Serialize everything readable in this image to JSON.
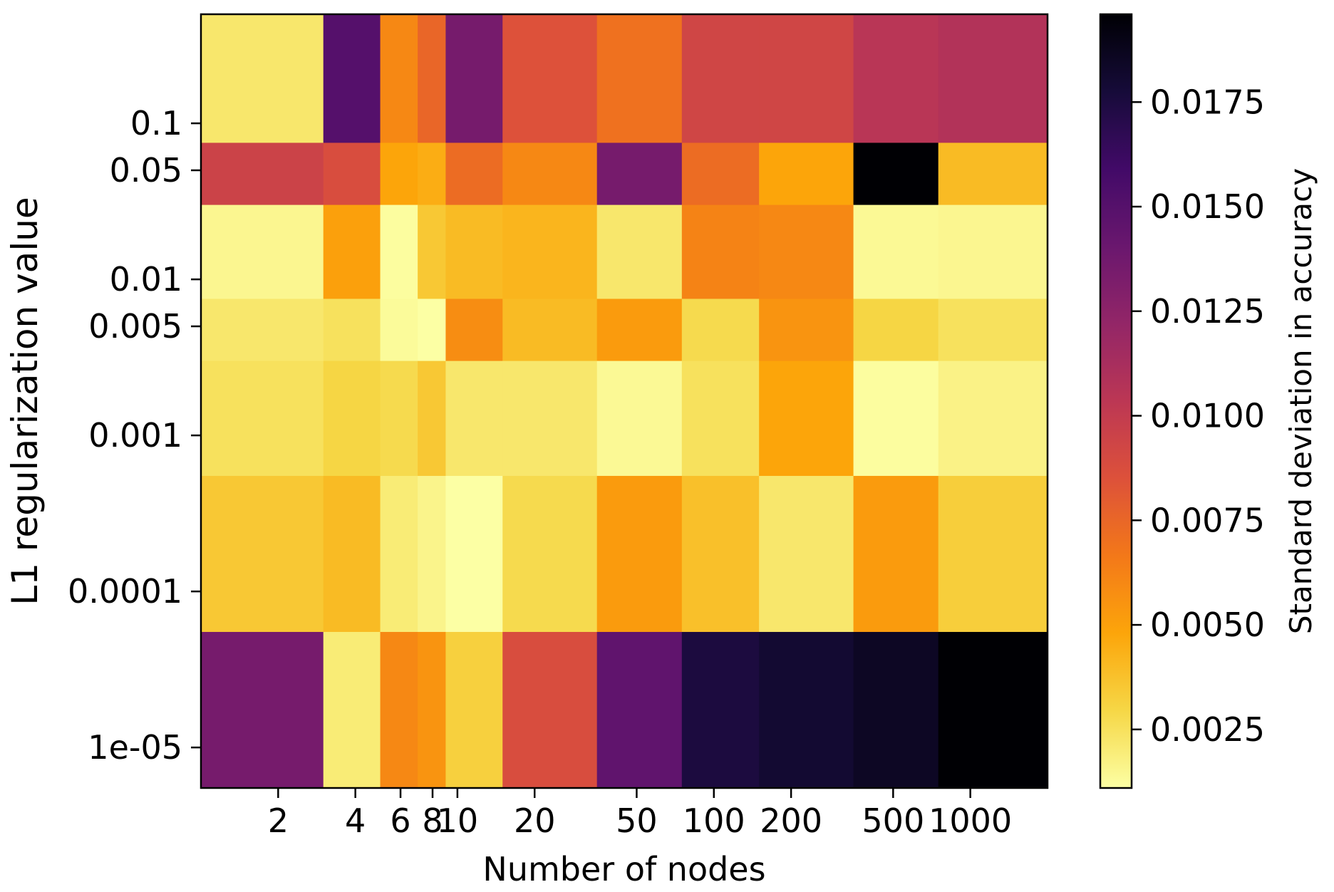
{
  "chart_data": {
    "type": "heatmap",
    "title": "",
    "xlabel": "Number of nodes",
    "ylabel": "L1 regularization value",
    "colorbar_label": "Standard deviation in accuracy",
    "colormap": "inferno_r",
    "x_tick_labels": [
      "2",
      "4",
      "6",
      "8",
      "10",
      "20",
      "50",
      "100",
      "200",
      "500",
      "1000"
    ],
    "y_tick_labels": [
      "0.1",
      "0.05",
      "0.01",
      "0.005",
      "0.001",
      "0.0001",
      "1e-05"
    ],
    "x_edges": [
      1,
      3,
      5,
      7,
      9,
      15,
      35,
      75,
      150,
      350,
      750,
      2000
    ],
    "y_edges": [
      0.5,
      0.075,
      0.03,
      0.0075,
      0.003,
      0.00055,
      5.5e-05,
      5.5e-06
    ],
    "color_range": [
      0.0011,
      0.0196
    ],
    "colorbar_ticks": [
      0.0025,
      0.005,
      0.0075,
      0.01,
      0.0125,
      0.015,
      0.0175
    ],
    "colorbar_tick_labels": [
      "0.0025",
      "0.0050",
      "0.0075",
      "0.0100",
      "0.0125",
      "0.0150",
      "0.0175"
    ],
    "values": [
      [
        0.0022,
        0.015,
        0.006,
        0.0075,
        0.0135,
        0.0085,
        0.007,
        0.0093,
        0.0093,
        0.0105,
        0.0108
      ],
      [
        0.0095,
        0.0088,
        0.0048,
        0.0045,
        0.0072,
        0.006,
        0.0135,
        0.0072,
        0.0048,
        0.0196,
        0.004
      ],
      [
        0.0015,
        0.005,
        0.0012,
        0.0035,
        0.004,
        0.0042,
        0.0022,
        0.0062,
        0.006,
        0.0014,
        0.0015
      ],
      [
        0.0022,
        0.0025,
        0.0013,
        0.0011,
        0.0058,
        0.004,
        0.0052,
        0.0028,
        0.0055,
        0.003,
        0.0025
      ],
      [
        0.0025,
        0.003,
        0.0028,
        0.0035,
        0.0022,
        0.0022,
        0.0014,
        0.0025,
        0.0048,
        0.0012,
        0.0017
      ],
      [
        0.0035,
        0.004,
        0.002,
        0.0016,
        0.0011,
        0.0028,
        0.0052,
        0.0038,
        0.0022,
        0.0052,
        0.0033
      ],
      [
        0.0135,
        0.002,
        0.006,
        0.0055,
        0.0032,
        0.0088,
        0.0145,
        0.0175,
        0.018,
        0.0185,
        0.0196
      ]
    ]
  }
}
